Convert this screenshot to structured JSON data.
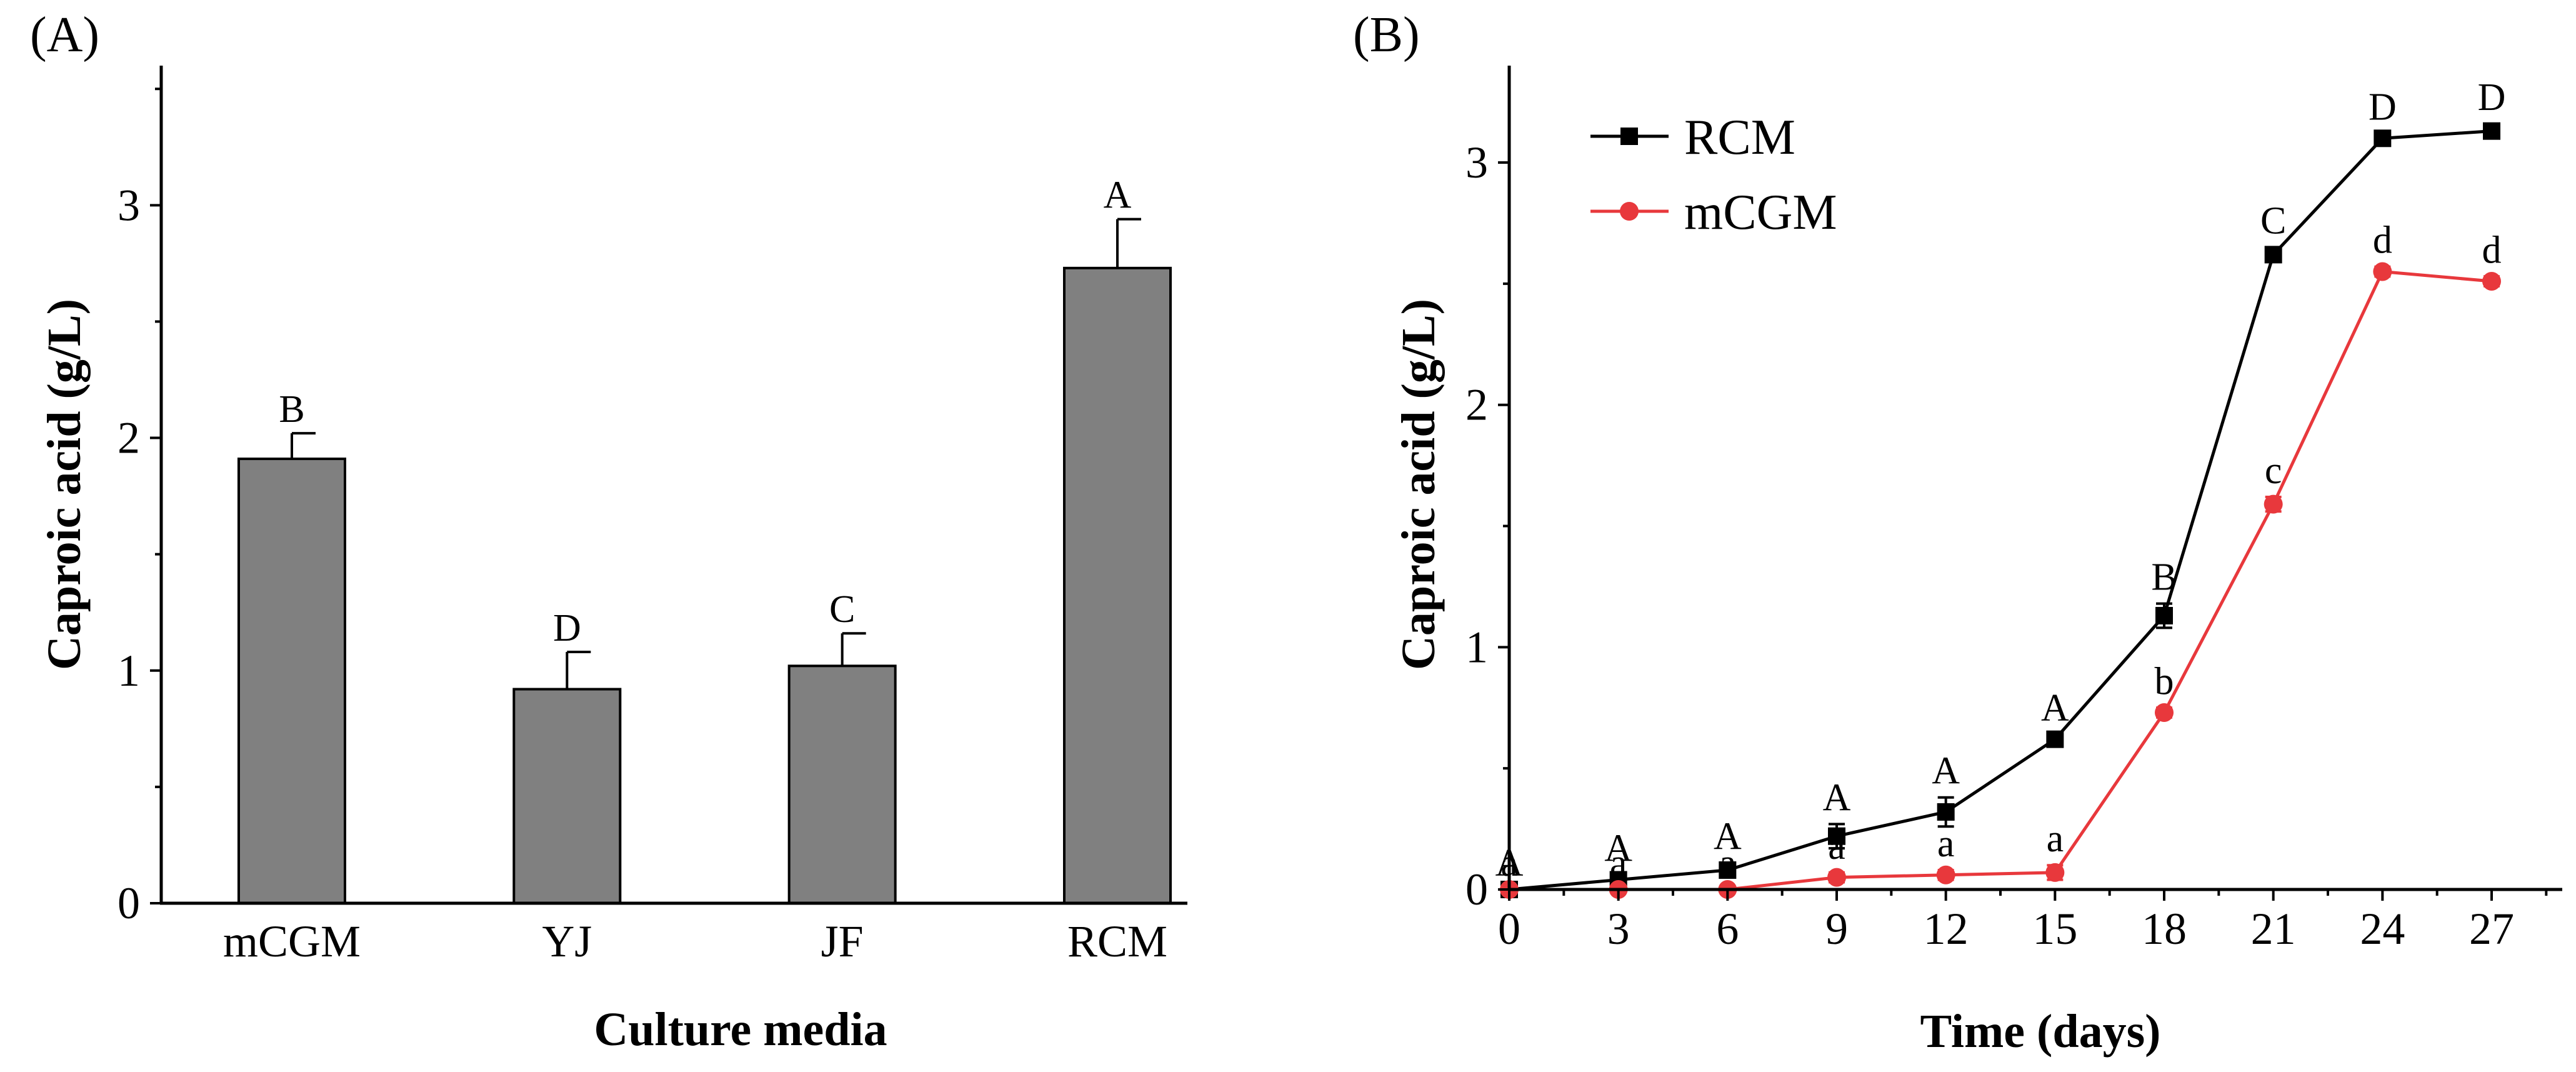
{
  "chart_data": [
    {
      "panel_label": "(A)",
      "type": "bar",
      "categories": [
        "mCGM",
        "YJ",
        "JF",
        "RCM"
      ],
      "values": [
        1.91,
        0.92,
        1.02,
        2.73
      ],
      "errors": [
        0.11,
        0.16,
        0.14,
        0.21
      ],
      "significance": [
        "B",
        "D",
        "C",
        "A"
      ],
      "bar_color": "#808080",
      "xlabel": "Culture media",
      "ylabel": "Caproic acid (g/L)",
      "ylim": [
        0,
        3.6
      ],
      "yticks": [
        "0",
        "1",
        "2",
        "3"
      ],
      "grid": false
    },
    {
      "panel_label": "(B)",
      "type": "line",
      "x": [
        0,
        3,
        6,
        9,
        12,
        15,
        18,
        21,
        24,
        27
      ],
      "xticks": [
        "0",
        "3",
        "6",
        "9",
        "12",
        "15",
        "18",
        "21",
        "24",
        "27"
      ],
      "yticks": [
        "0",
        "1",
        "2",
        "3"
      ],
      "xlabel": "Time (days)",
      "ylabel": "Caproic acid (g/L)",
      "xlim": [
        0,
        29.2
      ],
      "ylim": [
        0,
        3.4
      ],
      "legend_position": "top-left",
      "grid": false,
      "series": [
        {
          "name": "RCM",
          "color": "#000000",
          "marker": "square",
          "values": [
            0.0,
            0.04,
            0.08,
            0.22,
            0.32,
            0.62,
            1.13,
            2.62,
            3.1,
            3.13
          ],
          "errors": [
            0.0,
            0.02,
            0.03,
            0.05,
            0.06,
            0.02,
            0.05,
            0.03,
            0.02,
            0.03
          ],
          "significance": [
            "A",
            "A",
            "A",
            "A",
            "A",
            "A",
            "B",
            "C",
            "D",
            "D"
          ]
        },
        {
          "name": "mCGM",
          "color": "#e8383c",
          "marker": "circle",
          "values": [
            0.0,
            0.0,
            0.0,
            0.05,
            0.06,
            0.07,
            0.73,
            1.59,
            2.55,
            2.51
          ],
          "errors": [
            0.0,
            0.0,
            0.0,
            0.02,
            0.02,
            0.03,
            0.02,
            0.03,
            0.02,
            0.02
          ],
          "significance": [
            "a",
            "a",
            "a",
            "a",
            "a",
            "a",
            "b",
            "c",
            "d",
            "d"
          ]
        }
      ]
    }
  ]
}
